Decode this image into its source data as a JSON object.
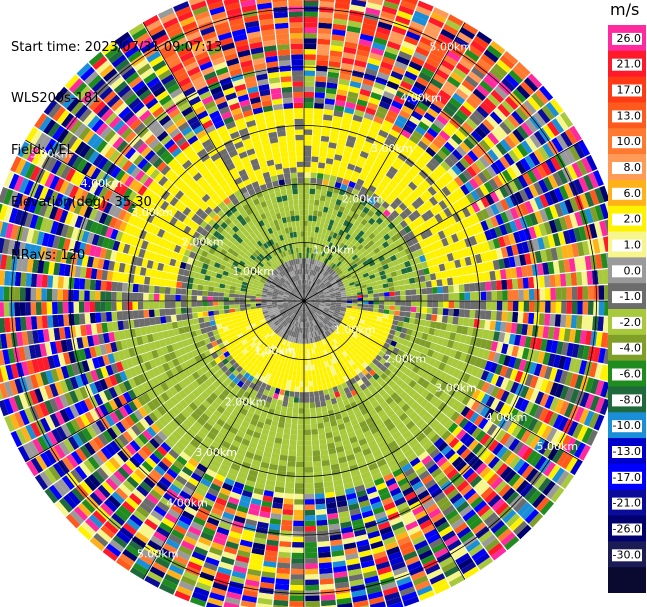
{
  "header": {
    "start_time": "Start time: 2023/07/31 09:07:13",
    "site": "WLS200s-181",
    "field": "Field: VEL",
    "elevation": "Elevation(deg): 35.30",
    "nrays": "NRays: 120"
  },
  "colorbar": {
    "units": "m/s",
    "ticks": [
      "26.0",
      "21.0",
      "17.0",
      "13.0",
      "10.0",
      "8.0",
      "6.0",
      "2.0",
      "1.0",
      "0.0",
      "-1.0",
      "-2.0",
      "-4.0",
      "-6.0",
      "-8.0",
      "-10.0",
      "-13.0",
      "-17.0",
      "-21.0",
      "-26.0",
      "-30.0"
    ],
    "colors": [
      "#ff2a9d",
      "#ff1a2a",
      "#ff3a14",
      "#ff5a1e",
      "#ff7a30",
      "#ff9a58",
      "#ffb11a",
      "#fff200",
      "#f6f68c",
      "#9a9a9a",
      "#6c6c6c",
      "#a8c93c",
      "#7f9f28",
      "#1e8c1e",
      "#1f6a3a",
      "#1a8fd8",
      "#0000cc",
      "#0000ff",
      "#0b0b99",
      "#00006e",
      "#1b1b55",
      "#0a0a30"
    ]
  },
  "chart_data": {
    "type": "heatmap",
    "projection": "polar",
    "field": "VEL",
    "units": "m/s",
    "n_rays": 120,
    "range_rings_km": [
      1.0,
      2.0,
      3.0,
      4.0,
      5.0
    ],
    "range_ring_labels": [
      "1.00km",
      "2.00km",
      "3.00km",
      "4.00km",
      "5.00km"
    ],
    "range_label_azimuths_deg": [
      30,
      120,
      210,
      300
    ],
    "max_range_km": 5.5,
    "radial_lines_azimuths_deg": [
      0,
      30,
      60,
      90,
      120,
      150,
      180,
      210,
      240,
      270,
      300,
      330
    ],
    "colorbar_range": [
      -30.0,
      26.0
    ],
    "regions": [
      {
        "description": "near-zero velocity (gray)",
        "range_km": [
          0.0,
          0.6
        ]
      },
      {
        "description": "negative velocity -2 to -4 m/s (green) to the north",
        "azimuth_deg": [
          270,
          90
        ],
        "range_km": [
          0.5,
          2.0
        ]
      },
      {
        "description": "positive velocity 2 m/s (yellow) to the south",
        "azimuth_deg": [
          100,
          260
        ],
        "range_km": [
          0.3,
          1.5
        ]
      },
      {
        "description": "positive velocity 2 m/s (yellow) ring to the north",
        "azimuth_deg": [
          300,
          60
        ],
        "range_km": [
          2.2,
          3.2
        ]
      },
      {
        "description": "negative velocity -2 m/s (green) ring to the south",
        "azimuth_deg": [
          110,
          250
        ],
        "range_km": [
          1.8,
          3.0
        ]
      },
      {
        "description": "noisy/random values beyond ~3.3 km",
        "range_km": [
          3.3,
          5.5
        ]
      },
      {
        "description": "strong positive 13-21 m/s (red/orange) band to the north",
        "azimuth_deg": [
          330,
          40
        ],
        "range_km": [
          4.0,
          5.5
        ]
      }
    ]
  }
}
